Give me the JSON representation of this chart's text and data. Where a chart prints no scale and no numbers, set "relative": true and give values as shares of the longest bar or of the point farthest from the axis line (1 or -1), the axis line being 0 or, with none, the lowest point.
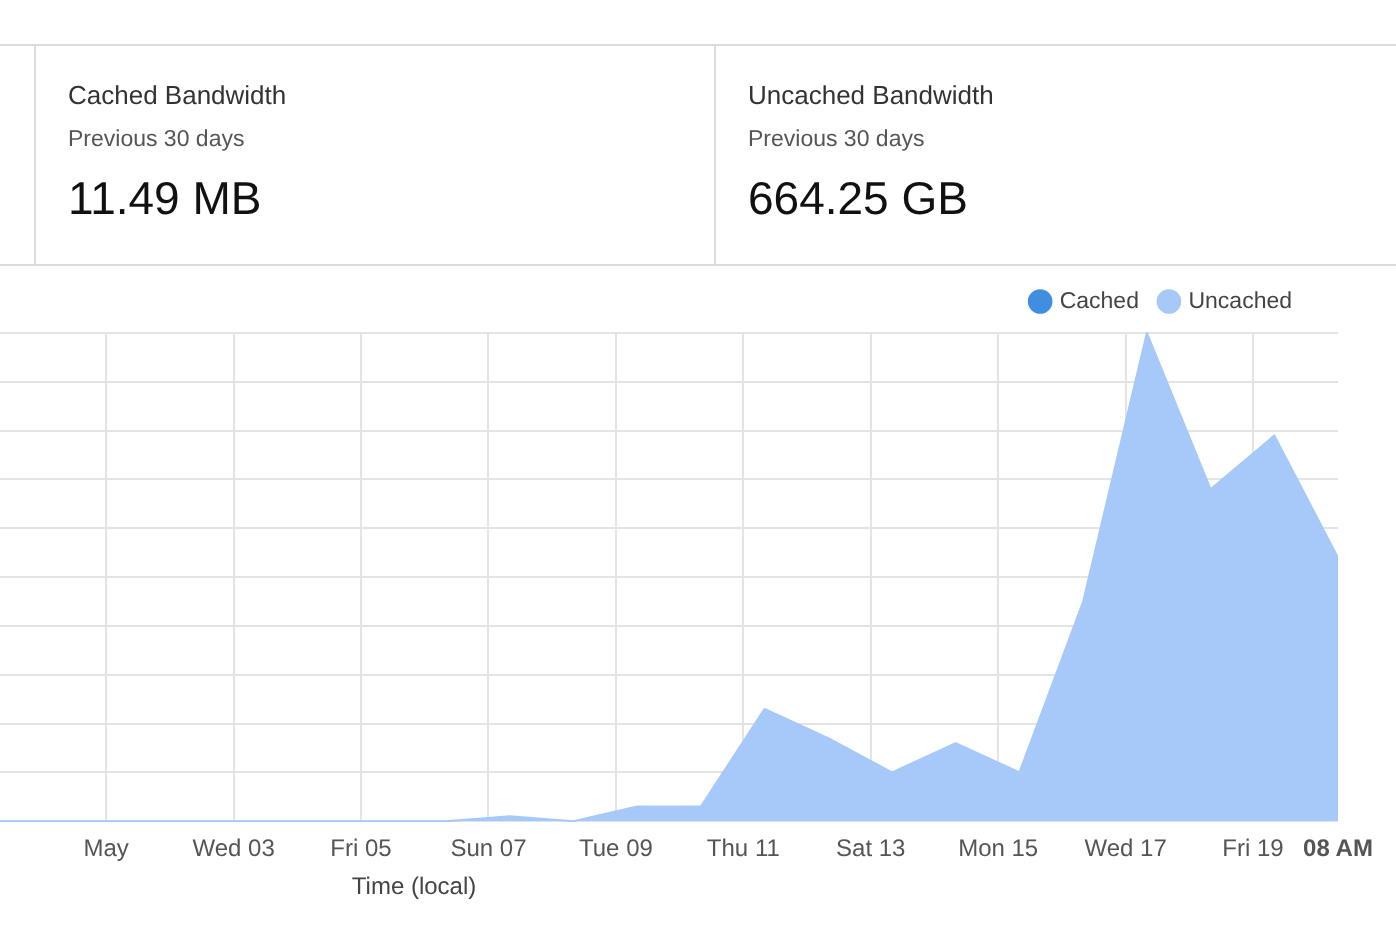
{
  "chart_data": {
    "type": "area",
    "relative": true,
    "xlabel": "Time (local)",
    "x": [
      "--04-29T08:00",
      "--04-30T08:00",
      "--05-01T08:00",
      "--05-02T08:00",
      "--05-03T08:00",
      "--05-04T08:00",
      "--05-05T08:00",
      "--05-06T08:00",
      "--05-07T08:00",
      "--05-08T08:00",
      "--05-09T08:00",
      "--05-10T08:00",
      "--05-11T08:00",
      "--05-12T08:00",
      "--05-13T08:00",
      "--05-14T08:00",
      "--05-15T08:00",
      "--05-16T08:00",
      "--05-17T08:00",
      "--05-18T08:00",
      "--05-19T08:00",
      "--05-20T08:00"
    ],
    "xlim": [
      "--04-29T08:00",
      "--05-20T08:00"
    ],
    "xticks": [
      {
        "value": "--05-01",
        "label": "May"
      },
      {
        "value": "--05-03",
        "label": "Wed 03"
      },
      {
        "value": "--05-05",
        "label": "Fri 05"
      },
      {
        "value": "--05-07",
        "label": "Sun 07"
      },
      {
        "value": "--05-09",
        "label": "Tue 09"
      },
      {
        "value": "--05-11",
        "label": "Thu 11"
      },
      {
        "value": "--05-13",
        "label": "Sat 13"
      },
      {
        "value": "--05-15",
        "label": "Mon 15"
      },
      {
        "value": "--05-17",
        "label": "Wed 17"
      },
      {
        "value": "--05-19",
        "label": "Fri 19"
      },
      {
        "value": "--05-20T08:00",
        "label": "08 AM"
      }
    ],
    "series": [
      {
        "name": "Cached",
        "color": "#3f8ee0",
        "values": [
          null,
          null,
          null,
          null,
          null,
          null,
          null,
          null,
          null,
          null,
          null,
          null,
          null,
          null,
          null,
          null,
          null,
          null,
          null,
          null,
          null,
          null
        ]
      },
      {
        "name": "Uncached",
        "color": "#a6c9fa",
        "values": [
          0,
          0,
          0,
          0,
          0,
          0,
          0,
          0,
          0.01,
          0,
          0.03,
          0.03,
          0.23,
          0.17,
          0.1,
          0.16,
          0.1,
          0.45,
          1,
          0.68,
          0.79,
          0.54
        ]
      }
    ],
    "grid": true,
    "legend": "top right",
    "marker": "none",
    "annotations": [
      "Cached Bandwidth",
      "Previous 30 days",
      "11.49 MB",
      "Uncached Bandwidth",
      "Previous 30 days",
      "664.25 GB"
    ]
  }
}
